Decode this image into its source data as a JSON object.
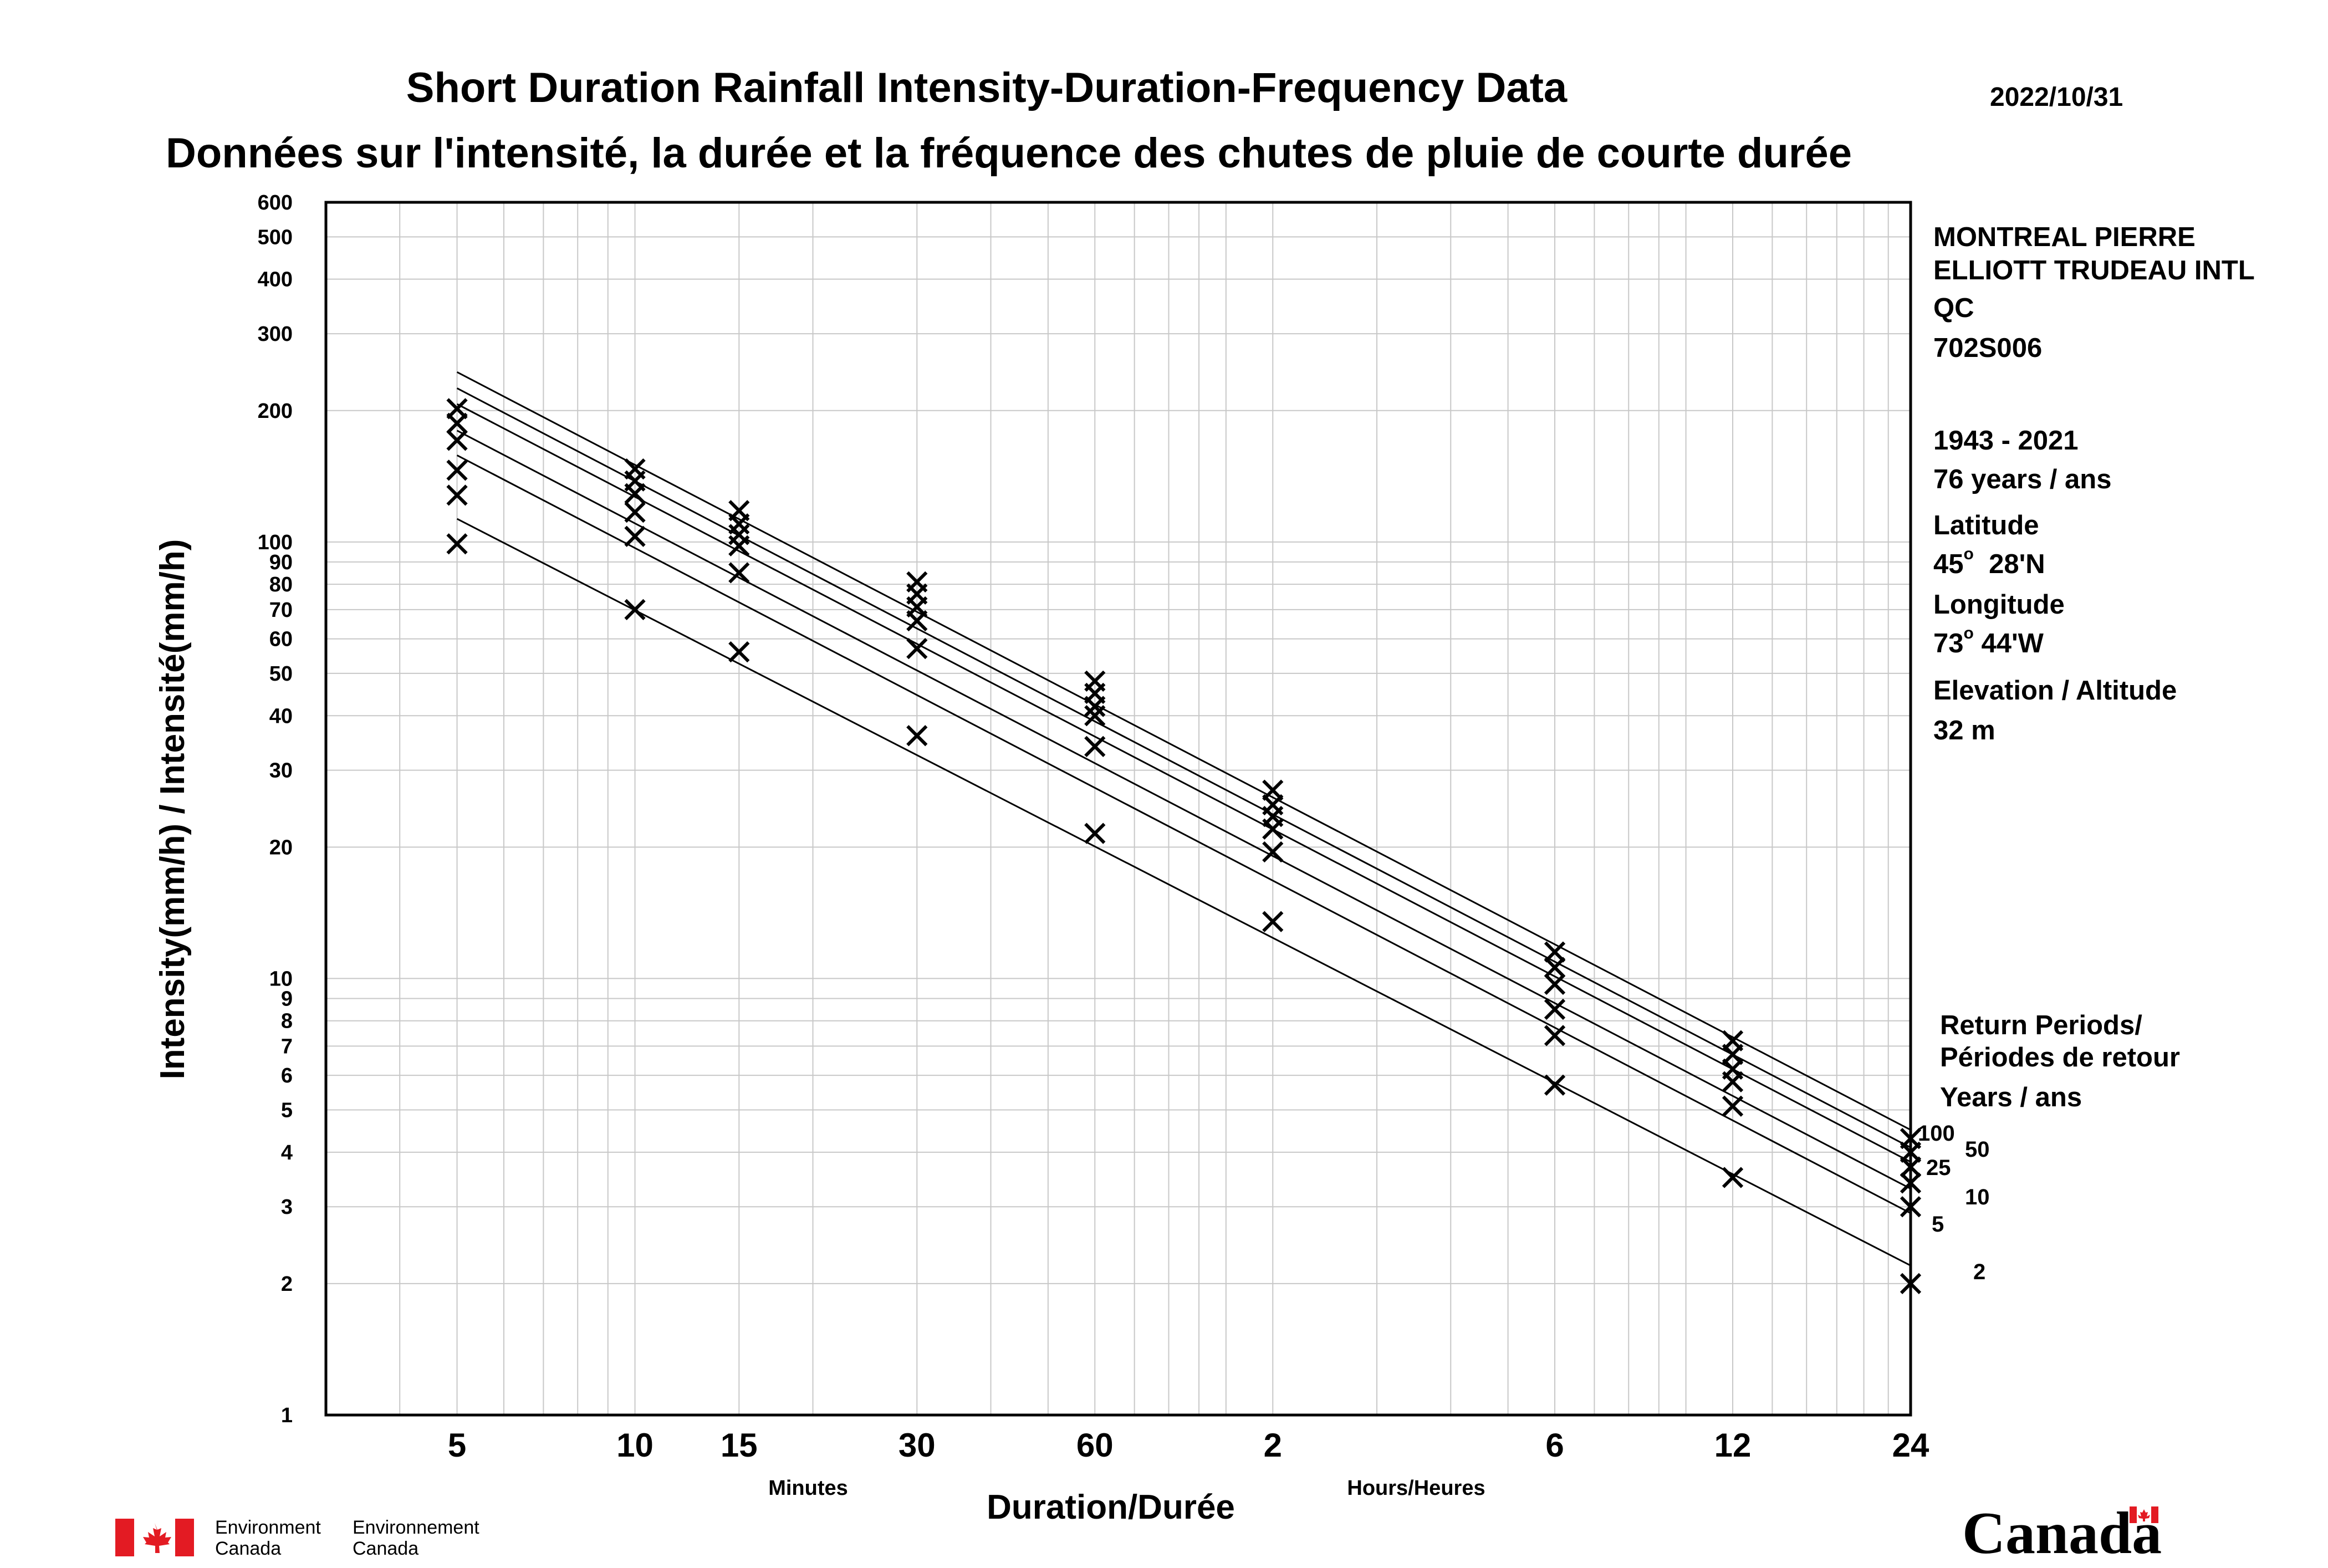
{
  "header": {
    "title_en": "Short Duration Rainfall Intensity-Duration-Frequency Data",
    "title_fr": "Données sur l'intensité, la durée et la fréquence des chutes de pluie de courte durée",
    "date": "2022/10/31"
  },
  "station": {
    "name_line1": "MONTREAL PIERRE",
    "name_line2": "ELLIOTT TRUDEAU INTL",
    "province": "QC",
    "id": "702S006",
    "period": "1943 - 2021",
    "years": "76 years / ans",
    "latitude_label": "Latitude",
    "latitude_deg": "45",
    "latitude_rest": "28'N",
    "longitude_label": "Longitude",
    "longitude_deg": "73",
    "longitude_rest": "44'W",
    "elevation_label": "Elevation / Altitude",
    "elevation": "32 m",
    "degree_symbol": "o"
  },
  "legend": {
    "title_line1": "Return Periods/",
    "title_line2": "Périodes de retour",
    "units": "Years / ans",
    "labels": [
      "100",
      "50",
      "25",
      "10",
      "5",
      "2"
    ]
  },
  "footer": {
    "env_en_line1": "Environment",
    "env_en_line2": "Canada",
    "env_fr_line1": "Environnement",
    "env_fr_line2": "Canada",
    "wordmark": "Canada",
    "flag_color": "#e31b23"
  },
  "chart_data": {
    "type": "scatter",
    "xscale": "log",
    "yscale": "log",
    "xlabel": "Duration/Durée",
    "ylabel": "Intensity(mm/h) / Intensité(mm/h)",
    "x_unit_minutes": "Minutes",
    "x_unit_hours": "Hours/Heures",
    "xlim_minutes": [
      3,
      1440
    ],
    "ylim": [
      1,
      600
    ],
    "grid": true,
    "x_ticks": [
      {
        "minutes": 5,
        "label": "5"
      },
      {
        "minutes": 10,
        "label": "10"
      },
      {
        "minutes": 15,
        "label": "15"
      },
      {
        "minutes": 30,
        "label": "30"
      },
      {
        "minutes": 60,
        "label": "60"
      },
      {
        "minutes": 120,
        "label": "2"
      },
      {
        "minutes": 360,
        "label": "6"
      },
      {
        "minutes": 720,
        "label": "12"
      },
      {
        "minutes": 1440,
        "label": "24"
      }
    ],
    "y_ticks": [
      {
        "value": 1,
        "label": "1"
      },
      {
        "value": 2,
        "label": "2"
      },
      {
        "value": 3,
        "label": "3"
      },
      {
        "value": 4,
        "label": "4"
      },
      {
        "value": 5,
        "label": "5"
      },
      {
        "value": 6,
        "label": "6"
      },
      {
        "value": 7,
        "label": "7"
      },
      {
        "value": 8,
        "label": "8"
      },
      {
        "value": 9,
        "label": "9"
      },
      {
        "value": 10,
        "label": "10"
      },
      {
        "value": 20,
        "label": "20"
      },
      {
        "value": 30,
        "label": "30"
      },
      {
        "value": 40,
        "label": "40"
      },
      {
        "value": 50,
        "label": "50"
      },
      {
        "value": 60,
        "label": "60"
      },
      {
        "value": 70,
        "label": "70"
      },
      {
        "value": 80,
        "label": "80"
      },
      {
        "value": 90,
        "label": "90"
      },
      {
        "value": 100,
        "label": "100"
      },
      {
        "value": 200,
        "label": "200"
      },
      {
        "value": 300,
        "label": "300"
      },
      {
        "value": 400,
        "label": "400"
      },
      {
        "value": 500,
        "label": "500"
      },
      {
        "value": 600,
        "label": "600"
      }
    ],
    "durations_minutes": [
      5,
      10,
      15,
      30,
      60,
      120,
      360,
      720,
      1440
    ],
    "series": [
      {
        "name": "100",
        "points": [
          202,
          147,
          118,
          81,
          48,
          27,
          11.5,
          7.2,
          4.3
        ],
        "fit": [
          245,
          4.5
        ]
      },
      {
        "name": "50",
        "points": [
          187,
          138,
          110,
          76,
          45,
          25,
          10.6,
          6.7,
          4.0
        ],
        "fit": [
          225,
          4.1
        ]
      },
      {
        "name": "25",
        "points": [
          171,
          129,
          104,
          71,
          42,
          23.5,
          9.7,
          6.2,
          3.7
        ],
        "fit": [
          207,
          3.8
        ]
      },
      {
        "name": "10",
        "points": [
          146,
          117,
          98,
          66,
          40,
          22,
          8.5,
          5.8,
          3.4
        ],
        "fit": [
          180,
          3.3
        ]
      },
      {
        "name": "5",
        "points": [
          128,
          103,
          85,
          57,
          34,
          19.5,
          7.4,
          5.1,
          3.0
        ],
        "fit": [
          158,
          2.9
        ]
      },
      {
        "name": "2",
        "points": [
          99,
          70,
          56,
          36,
          21.5,
          13.5,
          5.7,
          3.5,
          2.0
        ],
        "fit": [
          113,
          2.2
        ]
      }
    ]
  }
}
